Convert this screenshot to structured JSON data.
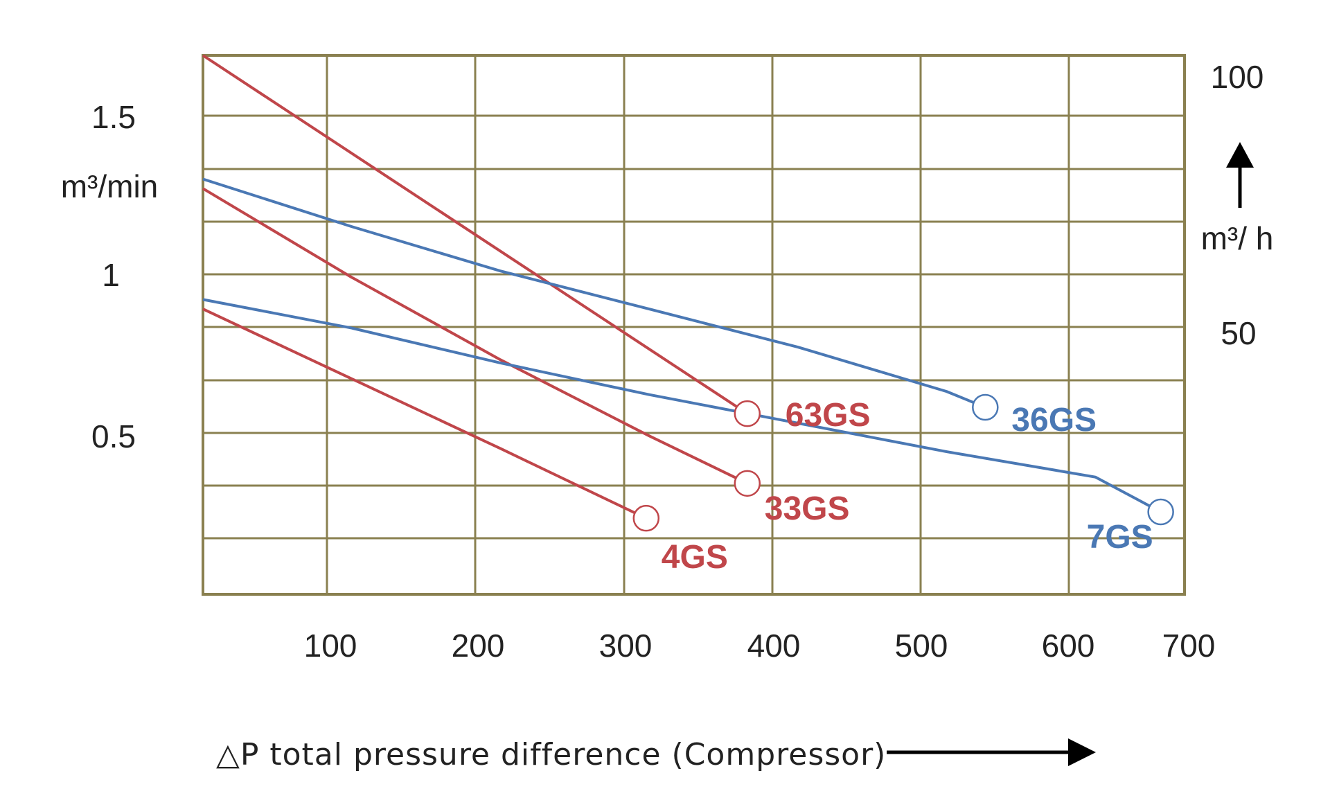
{
  "chart_data": {
    "type": "line",
    "xlabel": "△P total pressure difference (Compressor)",
    "ylabel_left": "m³/min",
    "ylabel_right": "m³/ h",
    "xlim": [
      0,
      660
    ],
    "ylim": [
      0,
      1.7
    ],
    "x_ticks": [
      "100",
      "200",
      "300",
      "400",
      "500",
      "600",
      "700"
    ],
    "y_ticks_left": [
      "0.5",
      "1",
      "1.5"
    ],
    "y_ticks_right": [
      "50",
      "100"
    ],
    "grid": true,
    "colors": {
      "red_series": "#c0464a",
      "blue_series": "#4a78b4",
      "grid": "#8a8050"
    },
    "series": [
      {
        "name": "63GS",
        "color": "#c0464a",
        "x": [
          0,
          366
        ],
        "y": [
          1.7,
          0.57
        ]
      },
      {
        "name": "33GS",
        "color": "#c0464a",
        "x": [
          0,
          100,
          200,
          300,
          366
        ],
        "y": [
          1.28,
          1.0,
          0.74,
          0.5,
          0.35
        ]
      },
      {
        "name": "4GS",
        "color": "#c0464a",
        "x": [
          0,
          100,
          200,
          298
        ],
        "y": [
          0.9,
          0.68,
          0.46,
          0.24
        ]
      },
      {
        "name": "36GS",
        "color": "#4a78b4",
        "x": [
          0,
          100,
          200,
          300,
          400,
          500,
          526
        ],
        "y": [
          1.31,
          1.16,
          1.02,
          0.9,
          0.78,
          0.64,
          0.59
        ]
      },
      {
        "name": "7GS",
        "color": "#4a78b4",
        "x": [
          0,
          100,
          200,
          300,
          400,
          500,
          600,
          644
        ],
        "y": [
          0.93,
          0.84,
          0.73,
          0.63,
          0.54,
          0.45,
          0.37,
          0.26
        ]
      }
    ]
  }
}
